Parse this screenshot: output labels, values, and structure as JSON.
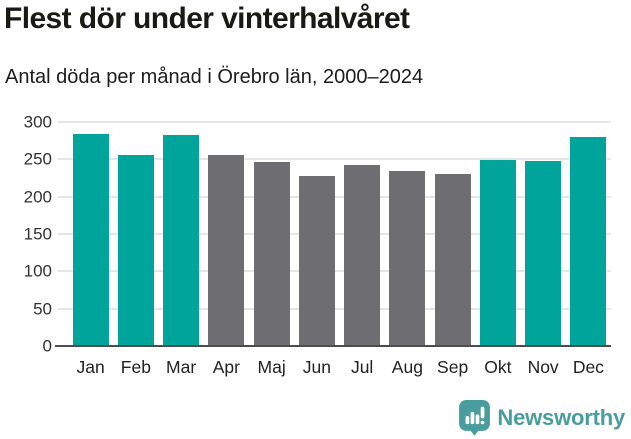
{
  "header": {
    "title": "Flest dör under vinterhalvåret",
    "subtitle": "Antal döda per månad i Örebro län, 2000–2024"
  },
  "chart_data": {
    "type": "bar",
    "title": "Flest dör under vinterhalvåret",
    "subtitle": "Antal döda per månad i Örebro län, 2000–2024",
    "categories": [
      "Jan",
      "Feb",
      "Mar",
      "Apr",
      "Maj",
      "Jun",
      "Jul",
      "Aug",
      "Sep",
      "Okt",
      "Nov",
      "Dec"
    ],
    "values": [
      284,
      256,
      283,
      256,
      246,
      228,
      242,
      235,
      231,
      249,
      248,
      280
    ],
    "series_groups": [
      "winter",
      "winter",
      "winter",
      "summer",
      "summer",
      "summer",
      "summer",
      "summer",
      "summer",
      "winter",
      "winter",
      "winter"
    ],
    "xlabel": "",
    "ylabel": "",
    "ylim": [
      0,
      300
    ],
    "yticks": [
      0,
      50,
      100,
      150,
      200,
      250,
      300
    ],
    "grid": true,
    "legend": "none",
    "colors": {
      "bar_winter": "#00a49a",
      "bar_summer": "#6d6d72",
      "axis_line": "#4d4d4d",
      "gridline": "#e5e5e8"
    }
  },
  "footer": {
    "brand": "Newsworthy",
    "logo_color": "#4a9d9d"
  }
}
